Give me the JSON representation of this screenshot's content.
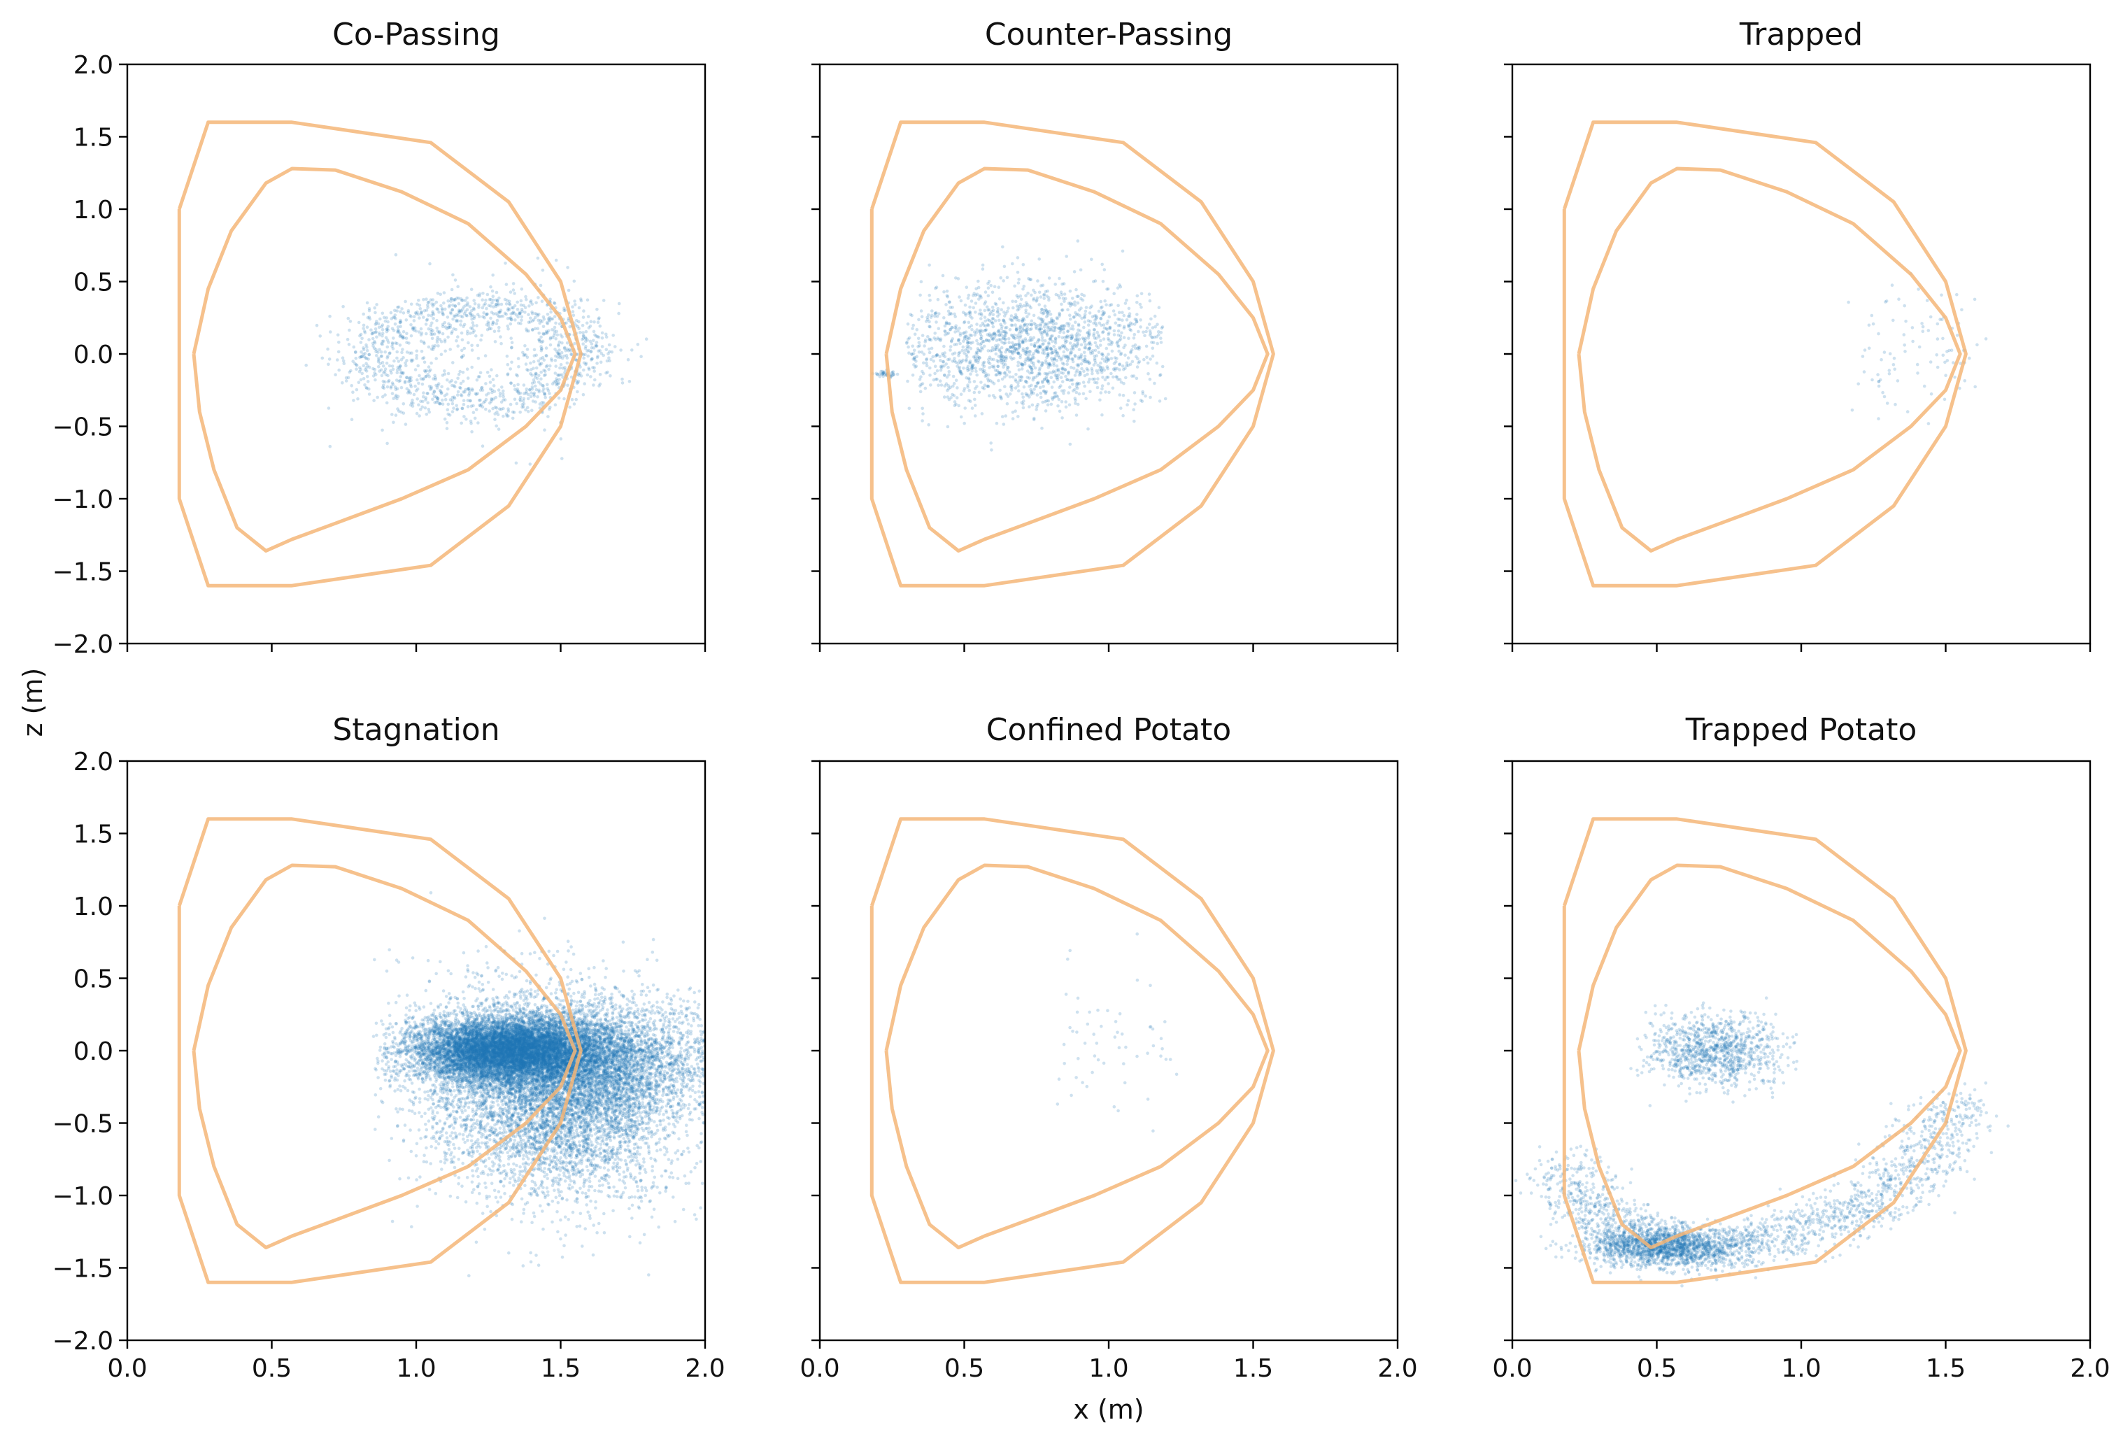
{
  "colors": {
    "points": "#1f77b4",
    "boundary": "#f5b678",
    "axes": "#000000"
  },
  "chart_data": {
    "type": "scatter",
    "layout": "2x3 grid of panels, shared x and y axes",
    "xlabel": "x (m)",
    "ylabel": "z (m)",
    "xlim": [
      0.0,
      2.0
    ],
    "ylim": [
      -2.0,
      2.0
    ],
    "x_ticks": [
      "0.0",
      "0.5",
      "1.0",
      "1.5",
      "2.0"
    ],
    "y_ticks": [
      "2.0",
      "1.5",
      "1.0",
      "0.5",
      "0.0",
      "−0.5",
      "−1.0",
      "−1.5",
      "−2.0"
    ],
    "grid": false,
    "outer_boundary": [
      [
        0.18,
        1.0
      ],
      [
        0.28,
        1.6
      ],
      [
        0.57,
        1.6
      ],
      [
        1.05,
        1.46
      ],
      [
        1.32,
        1.05
      ],
      [
        1.5,
        0.5
      ],
      [
        1.57,
        0.0
      ],
      [
        1.5,
        -0.5
      ],
      [
        1.32,
        -1.05
      ],
      [
        1.05,
        -1.46
      ],
      [
        0.57,
        -1.6
      ],
      [
        0.28,
        -1.6
      ],
      [
        0.18,
        -1.0
      ],
      [
        0.18,
        1.0
      ]
    ],
    "separatrix": [
      [
        0.23,
        0.0
      ],
      [
        0.28,
        0.45
      ],
      [
        0.36,
        0.85
      ],
      [
        0.48,
        1.18
      ],
      [
        0.57,
        1.28
      ],
      [
        0.72,
        1.27
      ],
      [
        0.95,
        1.12
      ],
      [
        1.18,
        0.9
      ],
      [
        1.38,
        0.55
      ],
      [
        1.5,
        0.25
      ],
      [
        1.55,
        0.0
      ],
      [
        1.5,
        -0.25
      ],
      [
        1.38,
        -0.5
      ],
      [
        1.18,
        -0.8
      ],
      [
        0.95,
        -1.0
      ],
      [
        0.72,
        -1.17
      ],
      [
        0.57,
        -1.28
      ],
      [
        0.48,
        -1.36
      ],
      [
        0.38,
        -1.2
      ],
      [
        0.3,
        -0.8
      ],
      [
        0.25,
        -0.4
      ],
      [
        0.23,
        0.0
      ]
    ],
    "panels": [
      {
        "title": "Co-Passing",
        "point_groups": [
          {
            "count": 1200,
            "shape": "ring",
            "center": [
              1.22,
              0.0
            ],
            "radius": [
              0.36,
              0.33
            ],
            "thickness": 0.09,
            "gap_y": 0.18
          },
          {
            "count": 250,
            "shape": "blob",
            "center": [
              1.25,
              0.0
            ],
            "spread": [
              0.25,
              0.28
            ],
            "xclip": [
              0.68,
              1.65
            ]
          }
        ]
      },
      {
        "title": "Counter-Passing",
        "point_groups": [
          {
            "count": 1900,
            "shape": "blob",
            "center": [
              0.72,
              0.05
            ],
            "spread": [
              0.26,
              0.22
            ],
            "xclip": [
              0.3,
              1.2
            ]
          },
          {
            "count": 35,
            "shape": "blob",
            "center": [
              0.225,
              -0.14
            ],
            "spread": [
              0.02,
              0.012
            ]
          }
        ]
      },
      {
        "title": "Trapped",
        "point_groups": [
          {
            "count": 95,
            "shape": "blob",
            "center": [
              1.4,
              0.05
            ],
            "spread": [
              0.12,
              0.22
            ],
            "xclip": [
              1.0,
              1.65
            ]
          }
        ]
      },
      {
        "title": "Stagnation",
        "point_groups": [
          {
            "count": 9000,
            "shape": "blob",
            "center": [
              1.32,
              0.0
            ],
            "spread": [
              0.17,
              0.11
            ],
            "xclip": [
              0.85,
              2.0
            ]
          },
          {
            "count": 4000,
            "shape": "blob",
            "center": [
              1.6,
              -0.08
            ],
            "spread": [
              0.22,
              0.22
            ],
            "xclip": [
              0.85,
              2.0
            ]
          },
          {
            "count": 3500,
            "shape": "blob",
            "center": [
              1.52,
              -0.45
            ],
            "spread": [
              0.2,
              0.3
            ],
            "xclip": [
              0.85,
              2.0
            ]
          },
          {
            "count": 1200,
            "shape": "blob",
            "center": [
              1.3,
              -0.1
            ],
            "spread": [
              0.2,
              0.35
            ],
            "xclip": [
              0.85,
              2.0
            ]
          }
        ]
      },
      {
        "title": "Confined Potato",
        "point_groups": [
          {
            "count": 60,
            "shape": "blob",
            "center": [
              1.0,
              0.05
            ],
            "spread": [
              0.12,
              0.3
            ],
            "xclip": [
              0.78,
              1.6
            ]
          }
        ]
      },
      {
        "title": "Trapped Potato",
        "point_groups": [
          {
            "count": 1000,
            "shape": "blob",
            "center": [
              0.7,
              0.0
            ],
            "spread": [
              0.12,
              0.12
            ],
            "xclip": [
              0.4,
              1.0
            ]
          },
          {
            "count": 1800,
            "shape": "curve",
            "points": [
              [
                0.18,
                -0.8
              ],
              [
                0.3,
                -1.15
              ],
              [
                0.5,
                -1.35
              ],
              [
                0.7,
                -1.38
              ],
              [
                1.0,
                -1.25
              ],
              [
                1.25,
                -1.05
              ],
              [
                1.45,
                -0.7
              ],
              [
                1.55,
                -0.35
              ]
            ],
            "spread": 0.08
          },
          {
            "count": 1400,
            "shape": "blob",
            "center": [
              0.52,
              -1.35
            ],
            "spread": [
              0.14,
              0.07
            ]
          }
        ]
      }
    ]
  }
}
